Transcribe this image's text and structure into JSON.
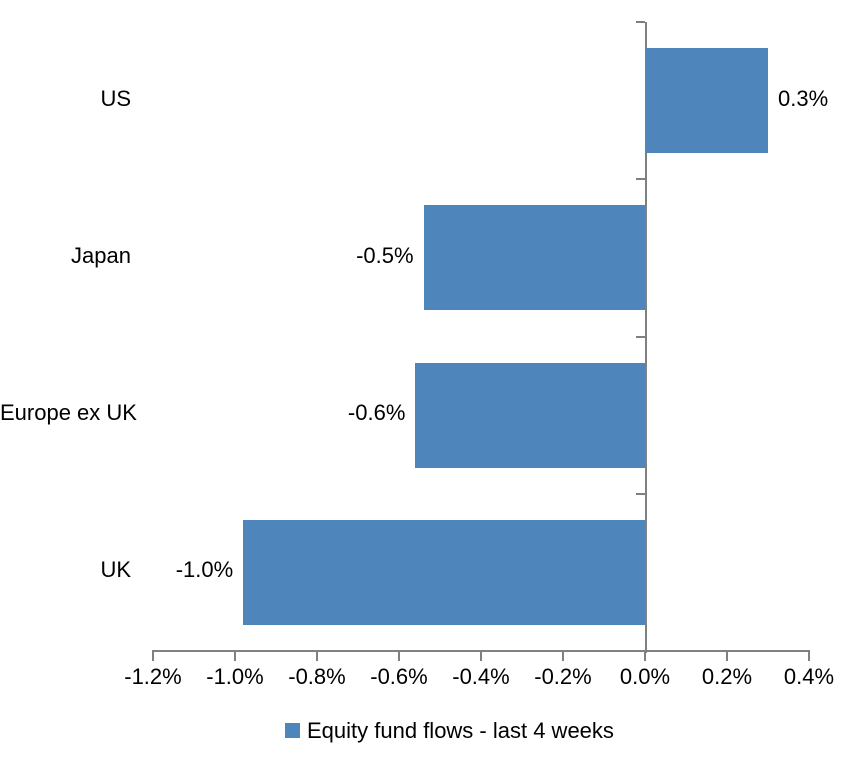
{
  "chart_data": {
    "type": "bar",
    "orientation": "horizontal",
    "title": "",
    "categories": [
      "US",
      "Japan",
      "Europe ex UK",
      "UK"
    ],
    "values": [
      0.3,
      -0.54,
      -0.56,
      -0.98
    ],
    "value_labels": [
      "0.3%",
      "-0.5%",
      "-0.6%",
      "-1.0%"
    ],
    "series_name": "Equity fund flows - last 4 weeks",
    "xlabel": "",
    "ylabel": "",
    "xlim": [
      -1.2,
      0.4
    ],
    "x_ticks": [
      -1.2,
      -1.0,
      -0.8,
      -0.6,
      -0.4,
      -0.2,
      0.0,
      0.2,
      0.4
    ],
    "x_tick_labels": [
      "-1.2%",
      "-1.0%",
      "-0.8%",
      "-0.6%",
      "-0.4%",
      "-0.2%",
      "0.0%",
      "0.2%",
      "0.4%"
    ],
    "grid": false,
    "legend_position": "bottom",
    "bar_color": "#4E86BC",
    "axis_color": "#808080",
    "text_color": "#000000",
    "background_color": "#FFFFFF"
  },
  "legend": {
    "label": "Equity fund flows - last 4 weeks"
  }
}
